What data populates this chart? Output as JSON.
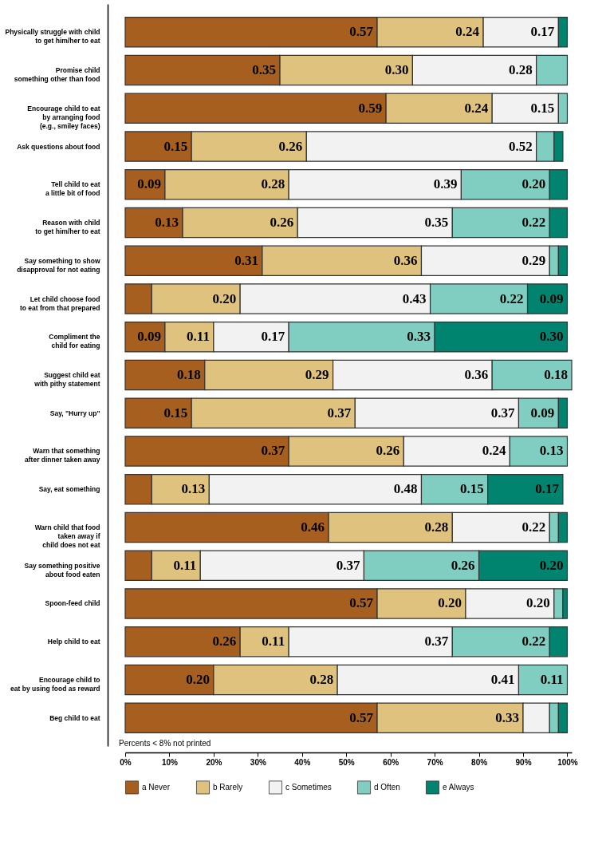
{
  "chart_data": {
    "type": "bar",
    "orientation": "horizontal",
    "stacked": true,
    "categories": [
      "Physically struggle with child\nto get him/her to eat",
      "Promise child\nsomething other than food",
      "Encourage child to eat\nby arranging food\n(e.g., smiley faces)",
      "Ask questions about food",
      "Tell child to eat\na little bit of food",
      "Reason with child\nto get him/her to eat",
      "Say something to show\ndisapproval for not eating",
      "Let child choose food\nto eat from that prepared",
      "Compliment the\nchild for eating",
      "Suggest child eat\nwith pithy statement",
      "Say, \"Hurry up\"",
      "Warn that something\nafter dinner taken away",
      "Say, eat something",
      "Warn child that food\ntaken away if\nchild does not eat",
      "Say something positive\nabout food eaten",
      "Spoon-feed child",
      "Help child to eat",
      "Encourage child to\neat by using food as reward",
      "Beg child to eat"
    ],
    "series": [
      {
        "name": "a Never",
        "color": "#a65f1e",
        "values": [
          0.57,
          0.35,
          0.59,
          0.15,
          0.09,
          0.13,
          0.31,
          0.06,
          0.09,
          0.18,
          0.15,
          0.37,
          0.06,
          0.46,
          0.06,
          0.57,
          0.26,
          0.2,
          0.57
        ],
        "value_labels": [
          "0.57",
          "0.35",
          "0.59",
          "0.15",
          "0.09",
          "0.13",
          "0.31",
          null,
          "0.09",
          "0.18",
          "0.15",
          "0.37",
          null,
          "0.46",
          null,
          "0.57",
          "0.26",
          "0.20",
          "0.57"
        ]
      },
      {
        "name": "b Rarely",
        "color": "#dfc27d",
        "values": [
          0.24,
          0.3,
          0.24,
          0.26,
          0.28,
          0.26,
          0.36,
          0.2,
          0.11,
          0.29,
          0.37,
          0.26,
          0.13,
          0.28,
          0.11,
          0.2,
          0.11,
          0.28,
          0.33
        ],
        "value_labels": [
          "0.24",
          "0.30",
          "0.24",
          "0.26",
          "0.28",
          "0.26",
          "0.36",
          "0.20",
          "0.11",
          "0.29",
          "0.37",
          "0.26",
          "0.13",
          "0.28",
          "0.11",
          "0.20",
          "0.11",
          "0.28",
          "0.33"
        ]
      },
      {
        "name": "c Sometimes",
        "color": "#f2f2f2",
        "values": [
          0.17,
          0.28,
          0.15,
          0.52,
          0.39,
          0.35,
          0.29,
          0.43,
          0.17,
          0.36,
          0.37,
          0.24,
          0.48,
          0.22,
          0.37,
          0.2,
          0.37,
          0.41,
          0.06
        ],
        "value_labels": [
          "0.17",
          "0.28",
          "0.15",
          "0.52",
          "0.39",
          "0.35",
          "0.29",
          "0.43",
          "0.17",
          "0.36",
          "0.37",
          "0.24",
          "0.48",
          "0.22",
          "0.37",
          "0.20",
          "0.37",
          "0.41",
          null
        ]
      },
      {
        "name": "d Often",
        "color": "#80cdc1",
        "values": [
          null,
          0.07,
          0.02,
          0.04,
          0.2,
          0.22,
          0.02,
          0.22,
          0.33,
          0.18,
          0.09,
          0.13,
          0.15,
          0.02,
          0.26,
          0.02,
          0.22,
          0.11,
          0.02
        ],
        "value_labels": [
          null,
          null,
          null,
          null,
          "0.20",
          "0.22",
          null,
          "0.22",
          "0.33",
          "0.18",
          "0.09",
          "0.13",
          "0.15",
          null,
          "0.26",
          null,
          "0.22",
          "0.11",
          null
        ]
      },
      {
        "name": "e Always",
        "color": "#01846f",
        "values": [
          0.02,
          null,
          null,
          0.02,
          0.04,
          0.04,
          0.02,
          0.09,
          0.3,
          null,
          0.02,
          null,
          0.17,
          0.02,
          0.2,
          0.01,
          0.04,
          null,
          0.02
        ],
        "value_labels": [
          null,
          null,
          null,
          null,
          null,
          null,
          null,
          "0.09",
          "0.30",
          null,
          null,
          null,
          "0.17",
          null,
          "0.20",
          null,
          null,
          null,
          null
        ]
      }
    ],
    "xlim": [
      0,
      1.01
    ],
    "xticks": [
      {
        "value": 0,
        "label": "0%"
      },
      {
        "value": 0.1,
        "label": "10%"
      },
      {
        "value": 0.2,
        "label": "20%"
      },
      {
        "value": 0.3,
        "label": "30%"
      },
      {
        "value": 0.4,
        "label": "40%"
      },
      {
        "value": 0.5,
        "label": "50%"
      },
      {
        "value": 0.6,
        "label": "60%"
      },
      {
        "value": 0.7,
        "label": "70%"
      },
      {
        "value": 0.8,
        "label": "80%"
      },
      {
        "value": 0.9,
        "label": "90%"
      },
      {
        "value": 1.0,
        "label": "100%"
      }
    ],
    "annotations": [
      "Percents < 8% not printed"
    ],
    "legend": "bottom",
    "grid": false
  }
}
